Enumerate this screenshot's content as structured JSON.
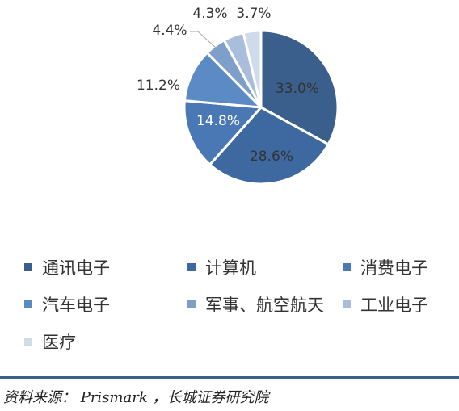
{
  "chart_data": {
    "type": "pie",
    "title": "",
    "categories": [
      "通讯电子",
      "计算机",
      "消费电子",
      "汽车电子",
      "军事、航空航天",
      "工业电子",
      "医疗"
    ],
    "values": [
      33.0,
      28.6,
      14.8,
      11.2,
      4.4,
      4.3,
      3.7
    ],
    "data_labels": [
      "33.0%",
      "28.6%",
      "14.8%",
      "11.2%",
      "4.4%",
      "4.3%",
      "3.7%"
    ],
    "colors": [
      "#3a5f8d",
      "#3e68a0",
      "#4a78b4",
      "#5b8ac4",
      "#7f9fcb",
      "#a9bddd",
      "#cfdaeb"
    ],
    "legend_placement": "bottom",
    "legend": [
      "通讯电子",
      "计算机",
      "消费电子",
      "汽车电子",
      "军事、航空航天",
      "工业电子",
      "医疗"
    ]
  },
  "source": {
    "text": "资料来源：   Prismark ，长城证券研究院"
  }
}
